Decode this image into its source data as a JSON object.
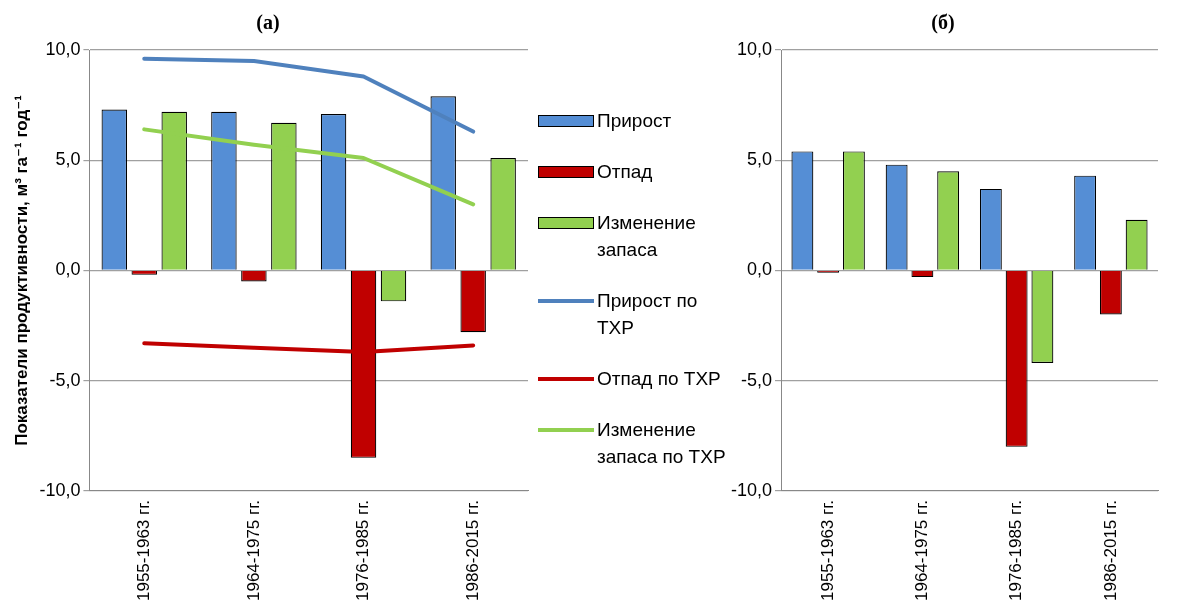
{
  "chart_data": [
    {
      "type": "bar",
      "title": "(а)",
      "ylabel": "Показатели продуктивности, м³ га⁻¹ год⁻¹",
      "categories": [
        "1955-1963 гг.",
        "1964-1975 гг.",
        "1976-1985 гг.",
        "1986-2015 гг."
      ],
      "series": [
        {
          "name": "Прирост",
          "color": "#558ed5",
          "values": [
            7.3,
            7.2,
            7.1,
            7.9
          ]
        },
        {
          "name": "Отпад",
          "color": "#c00000",
          "values": [
            -0.2,
            -0.5,
            -8.5,
            -2.8
          ]
        },
        {
          "name": "Изменение запаса",
          "color": "#92d050",
          "values": [
            7.2,
            6.7,
            -1.4,
            5.1
          ]
        },
        {
          "name": "Прирост по ТХР",
          "type": "line",
          "color": "#4f81bd",
          "values": [
            9.6,
            9.5,
            8.8,
            6.3
          ]
        },
        {
          "name": "Отпад по ТХР",
          "type": "line",
          "color": "#c00000",
          "values": [
            -3.3,
            -3.5,
            -3.7,
            -3.4
          ]
        },
        {
          "name": "Изменение запаса по ТХР",
          "type": "line",
          "color": "#92d050",
          "values": [
            6.4,
            5.7,
            5.1,
            3.0
          ]
        }
      ],
      "ylim": [
        -10,
        10
      ],
      "yticks": [
        {
          "value": -10,
          "label": "-10,0"
        },
        {
          "value": -5,
          "label": "-5,0"
        },
        {
          "value": 0,
          "label": "0,0"
        },
        {
          "value": 5,
          "label": "5,0"
        },
        {
          "value": 10,
          "label": "10,0"
        }
      ],
      "grid": "y",
      "legend": "right",
      "marker": "none"
    },
    {
      "type": "bar",
      "title": "(б)",
      "categories": [
        "1955-1963 гг.",
        "1964-1975 гг.",
        "1976-1985 гг.",
        "1986-2015 гг."
      ],
      "series": [
        {
          "color": "#558ed5",
          "values": [
            5.4,
            4.8,
            3.7,
            4.3
          ]
        },
        {
          "color": "#c00000",
          "values": [
            -0.1,
            -0.3,
            -8.0,
            -2.0
          ]
        },
        {
          "color": "#92d050",
          "values": [
            5.4,
            4.5,
            -4.2,
            2.3
          ]
        }
      ],
      "ylim": [
        -10,
        10
      ],
      "yticks": [
        {
          "value": -10,
          "label": "-10,0"
        },
        {
          "value": -5,
          "label": "-5,0"
        },
        {
          "value": 0,
          "label": "0,0"
        },
        {
          "value": 5,
          "label": "5,0"
        },
        {
          "value": 10,
          "label": "10,0"
        }
      ],
      "grid": "y"
    }
  ]
}
